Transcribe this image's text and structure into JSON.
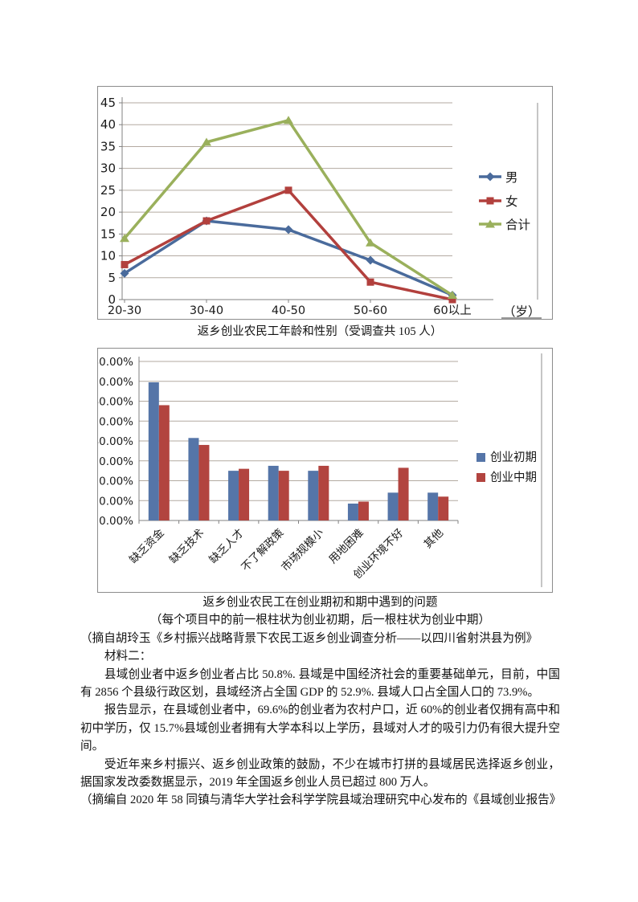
{
  "captions": {
    "chart1": "返乡创业农民工年龄和性别（受调查共 105 人）",
    "chart2_title": "返乡创业农民工在创业期初和期中遇到的问题",
    "chart2_note": "（每个项目中的前一根柱状为创业初期，后一根柱状为创业中期）",
    "chart2_source": "（摘自胡玲玉《乡村振兴战略背景下农民工返乡创业调查分析——以四川省射洪县为例》"
  },
  "material2": {
    "heading": "材料二：",
    "paragraphs": [
      "县域创业者中返乡创业者占比 50.8%. 县域是中国经济社会的重要基础单元，目前，中国有 2856 个县级行政区划，县域经济占全国 GDP 的 52.9%. 县域人口占全国人口的 73.9%。",
      "报告显示，在县域创业者中，69.6%的创业者为农村户口，近 60%的创业者仅拥有高中和初中学历，仅 15.7%县域创业者拥有大学本科以上学历，县域对人才的吸引力仍有很大提升空间。",
      "受近年来乡村振兴、返乡创业政策的鼓励，不少在城市打拼的县域居民选择返乡创业，据国家发改委数据显示，2019 年全国返乡创业人员已超过 800 万人。",
      "（摘编自 2020 年 58 同镇与清华大学社会科学学院县域治理研究中心发布的《县域创业报告》"
    ]
  },
  "colors": {
    "male_line": "#4a6b9c",
    "female_line": "#b2403d",
    "total_line": "#9ab05c",
    "bar_initial": "#5575a8",
    "bar_middle": "#b2443f",
    "gridline": "#b3aaa1",
    "axis": "#808080",
    "box_border": "#8c8c8c"
  },
  "chart_data": [
    {
      "type": "line",
      "title": "返乡创业农民工年龄和性别（受调查共 105 人）",
      "categories": [
        "20-30",
        "30-40",
        "40-50",
        "50-60",
        "60以上"
      ],
      "series": [
        {
          "name": "男",
          "values": [
            6,
            18,
            16,
            9,
            1
          ],
          "color": "#4a6b9c",
          "marker": "diamond"
        },
        {
          "name": "女",
          "values": [
            8,
            18,
            25,
            4,
            0
          ],
          "color": "#b2403d",
          "marker": "square"
        },
        {
          "name": "合计",
          "values": [
            14,
            36,
            41,
            13,
            1
          ],
          "color": "#9ab05c",
          "marker": "triangle"
        }
      ],
      "xlabel": "",
      "ylabel": "",
      "unit_label": "（岁）",
      "ylim": [
        0,
        45
      ],
      "ytick": 5,
      "grid": true,
      "legend_position": "right"
    },
    {
      "type": "bar",
      "title": "返乡创业农民工在创业期初和期中遇到的问题",
      "categories": [
        "缺乏资金",
        "缺乏技术",
        "缺乏人才",
        "不了解政策",
        "市场规模小",
        "用地困难",
        "创业环境不好",
        "其他"
      ],
      "series": [
        {
          "name": "创业初期",
          "values": [
            69.5,
            41.5,
            25,
            27.5,
            25,
            8.5,
            14,
            14
          ],
          "color": "#5575a8"
        },
        {
          "name": "创业中期",
          "values": [
            58,
            38,
            26,
            25,
            27.5,
            9.5,
            26.5,
            12
          ],
          "color": "#b2443f"
        }
      ],
      "xlabel": "",
      "ylabel": "",
      "ylim": [
        0,
        80
      ],
      "ytick": 10,
      "y_format": "percent2",
      "grid": true,
      "legend_position": "right"
    }
  ]
}
